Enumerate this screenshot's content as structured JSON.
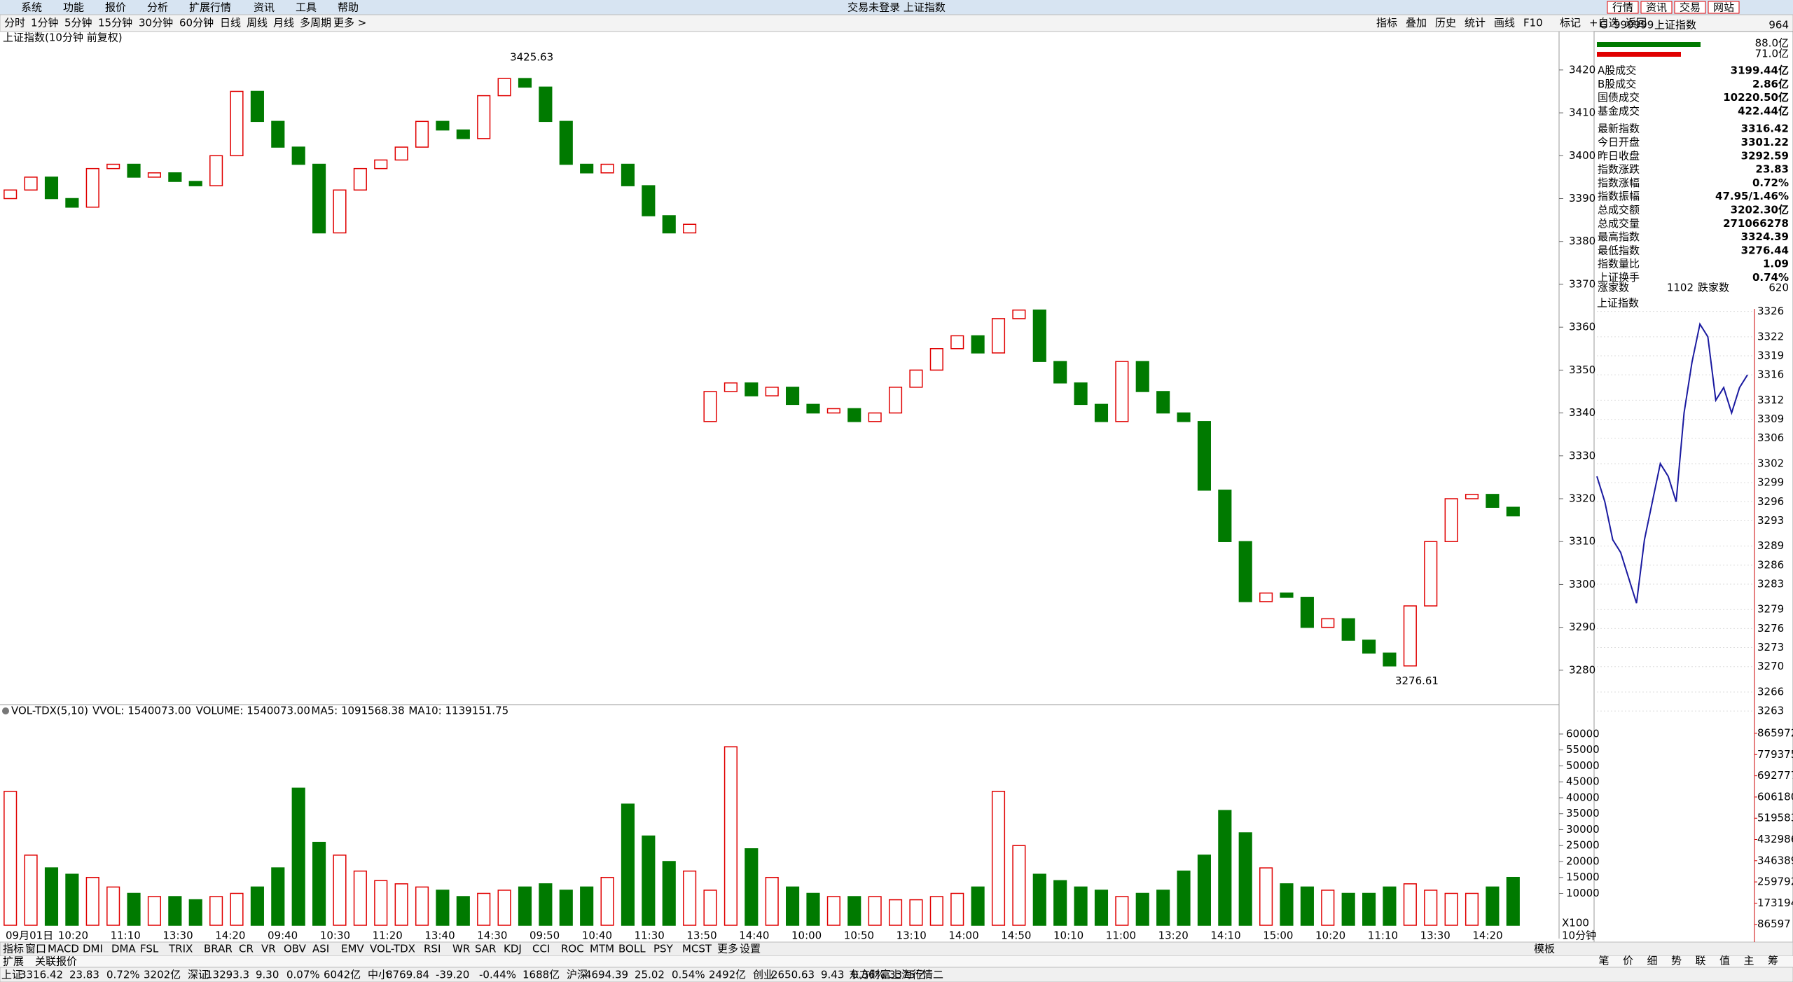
{
  "menu": {
    "items": [
      "系统",
      "功能",
      "报价",
      "分析",
      "扩展行情",
      "资讯",
      "工具",
      "帮助"
    ],
    "center": "交易未登录 上证指数",
    "buttons": [
      "行情",
      "资讯",
      "交易",
      "网站"
    ]
  },
  "periods": {
    "items": [
      "分时",
      "1分钟",
      "5分钟",
      "15分钟",
      "30分钟",
      "60分钟",
      "日线",
      "周线",
      "月线",
      "多周期"
    ],
    "more": "更多 >"
  },
  "tools": [
    "指标",
    "叠加",
    "历史",
    "统计",
    "画线",
    "F10",
    "标记",
    "+自选",
    "返回"
  ],
  "chart_data": [
    {
      "type": "candlestick",
      "title": "上证指数(10分钟 前复权)",
      "open": [
        3390,
        3392,
        3395,
        3390,
        3388,
        3397,
        3398,
        3395,
        3396,
        3394,
        3393,
        3400,
        3415,
        3408,
        3402,
        3398,
        3382,
        3392,
        3397,
        3399,
        3402,
        3408,
        3406,
        3404,
        3414,
        3418,
        3416,
        3408,
        3398,
        3396,
        3398,
        3393,
        3386,
        3382,
        3338,
        3345,
        3347,
        3344,
        3346,
        3342,
        3340,
        3341,
        3338,
        3340,
        3346,
        3350,
        3355,
        3358,
        3354,
        3362,
        3364,
        3352,
        3347,
        3342,
        3338,
        3352,
        3345,
        3340,
        3338,
        3322,
        3310,
        3296,
        3298,
        3297,
        3290,
        3292,
        3287,
        3284,
        3281,
        3295,
        3310,
        3320,
        3321,
        3318
      ],
      "close": [
        3392,
        3395,
        3390,
        3388,
        3397,
        3398,
        3395,
        3396,
        3394,
        3393,
        3400,
        3415,
        3408,
        3402,
        3398,
        3382,
        3392,
        3397,
        3399,
        3402,
        3408,
        3406,
        3404,
        3414,
        3418,
        3416,
        3408,
        3398,
        3396,
        3398,
        3393,
        3386,
        3382,
        3384,
        3345,
        3347,
        3344,
        3346,
        3342,
        3340,
        3341,
        3338,
        3340,
        3346,
        3350,
        3355,
        3358,
        3354,
        3362,
        3364,
        3352,
        3347,
        3342,
        3338,
        3352,
        3345,
        3340,
        3338,
        3322,
        3310,
        3296,
        3298,
        3297,
        3290,
        3292,
        3287,
        3284,
        3281,
        3295,
        3310,
        3320,
        3321,
        3318,
        3316
      ],
      "ylim": [
        3272.3,
        3428.8
      ],
      "yticks": [
        3280,
        3290,
        3300,
        3310,
        3320,
        3330,
        3340,
        3350,
        3360,
        3370,
        3380,
        3390,
        3400,
        3410,
        3420
      ],
      "annotations": [
        "3425.63",
        "3276.61"
      ],
      "x_labels": [
        "09月01日",
        "10:20",
        "11:10",
        "13:30",
        "14:20",
        "09:40",
        "10:30",
        "11:20",
        "13:40",
        "14:30",
        "09:50",
        "10:40",
        "11:30",
        "13:50",
        "14:40",
        "10:00",
        "10:50",
        "13:10",
        "14:00",
        "14:50",
        "10:10",
        "11:00",
        "13:20",
        "14:10",
        "15:00",
        "10:20",
        "11:10",
        "13:30",
        "14:20"
      ],
      "period_label": "10分钟"
    },
    {
      "type": "bar",
      "title": "VOL-TDX(5,10)",
      "legend": [
        "VVOL: 1540073.00",
        "VOLUME: 1540073.00",
        "MA5: 1091568.38",
        "MA10: 1139151.75"
      ],
      "values": [
        42000,
        22000,
        18000,
        16000,
        15000,
        12000,
        10000,
        9000,
        9000,
        8000,
        9000,
        10000,
        12000,
        18000,
        43000,
        26000,
        22000,
        17000,
        14000,
        13000,
        12000,
        11000,
        9000,
        10000,
        11000,
        12000,
        13000,
        11000,
        12000,
        15000,
        38000,
        28000,
        20000,
        17000,
        11000,
        56000,
        24000,
        15000,
        12000,
        10000,
        9000,
        9000,
        9000,
        8000,
        8000,
        9000,
        10000,
        12000,
        42000,
        25000,
        16000,
        14000,
        12000,
        11000,
        9000,
        10000,
        11000,
        17000,
        22000,
        36000,
        29000,
        18000,
        13000,
        12000,
        11000,
        10000,
        10000,
        12000,
        13000,
        11000,
        10000,
        10000,
        12000,
        15000
      ],
      "ylim": [
        0,
        69000
      ],
      "yticks": [
        10000,
        15000,
        20000,
        25000,
        30000,
        35000,
        40000,
        45000,
        50000,
        55000,
        60000
      ],
      "scale_label": "X100"
    },
    {
      "type": "line",
      "title": "上证指数",
      "values": [
        3300,
        3296,
        3290,
        3288,
        3284,
        3280,
        3290,
        3296,
        3302,
        3300,
        3296,
        3310,
        3318,
        3324,
        3322,
        3312,
        3314,
        3310,
        3314,
        3316
      ],
      "ylim": [
        3259.7,
        3326.4
      ],
      "yticks": [
        3326,
        3322,
        3319,
        3316,
        3312,
        3309,
        3306,
        3302,
        3299,
        3296,
        3293,
        3289,
        3286,
        3283,
        3279,
        3276,
        3273,
        3270,
        3266,
        3263
      ],
      "y2lim": [
        0,
        865972
      ],
      "y2ticks": [
        865972,
        779375,
        692777,
        606180,
        519583,
        432986,
        346389,
        259792,
        173194,
        86597
      ]
    }
  ],
  "quote": {
    "prefix": "G",
    "code": "999999",
    "name": "上证指数",
    "num": "964",
    "bar_values": [
      "88.0亿",
      "71.0亿"
    ],
    "rows": [
      [
        "A股成交",
        "3199.44亿"
      ],
      [
        "B股成交",
        "2.86亿"
      ],
      [
        "国债成交",
        "10220.50亿"
      ],
      [
        "基金成交",
        "422.44亿"
      ],
      [
        "最新指数",
        "3316.42"
      ],
      [
        "今日开盘",
        "3301.22"
      ],
      [
        "昨日收盘",
        "3292.59"
      ],
      [
        "指数涨跌",
        "23.83"
      ],
      [
        "指数涨幅",
        "0.72%"
      ],
      [
        "指数振幅",
        "47.95/1.46%"
      ],
      [
        "总成交额",
        "3202.30亿"
      ],
      [
        "总成交量",
        "271066278"
      ],
      [
        "最高指数",
        "3324.39"
      ],
      [
        "最低指数",
        "3276.44"
      ],
      [
        "指数量比",
        "1.09"
      ],
      [
        "上证换手",
        "0.74%"
      ]
    ],
    "up_label": "涨家数",
    "up": "1102",
    "down_label": "跌家数",
    "down": "620"
  },
  "tabs": [
    "笔",
    "价",
    "细",
    "势",
    "联",
    "值",
    "主",
    "筹"
  ],
  "indicators": [
    "指标",
    "窗口",
    "MACD",
    "DMI",
    "DMA",
    "FSL",
    "TRIX",
    "BRAR",
    "CR",
    "VR",
    "OBV",
    "ASI",
    "EMV",
    "VOL-TDX",
    "RSI",
    "WR",
    "SAR",
    "KDJ",
    "CCI",
    "ROC",
    "MTM",
    "BOLL",
    "PSY",
    "MCST",
    "更多",
    "设置"
  ],
  "template": "模板",
  "sheet_tabs": [
    "扩展",
    "关联报价"
  ],
  "status": [
    [
      "上证",
      "3316.42",
      "23.83",
      "0.72%",
      "3202亿"
    ],
    [
      "深证",
      "13293.3",
      "9.30",
      "0.07%",
      "6042亿"
    ],
    [
      "中小",
      "8769.84",
      "-39.20",
      "-0.44%",
      "1688亿"
    ],
    [
      "沪深",
      "4694.39",
      "25.02",
      "0.54%",
      "2492亿"
    ],
    [
      "创业",
      "2650.63",
      "9.43",
      "0.36%",
      "3375亿"
    ]
  ],
  "source": "东方财富上海行情二"
}
